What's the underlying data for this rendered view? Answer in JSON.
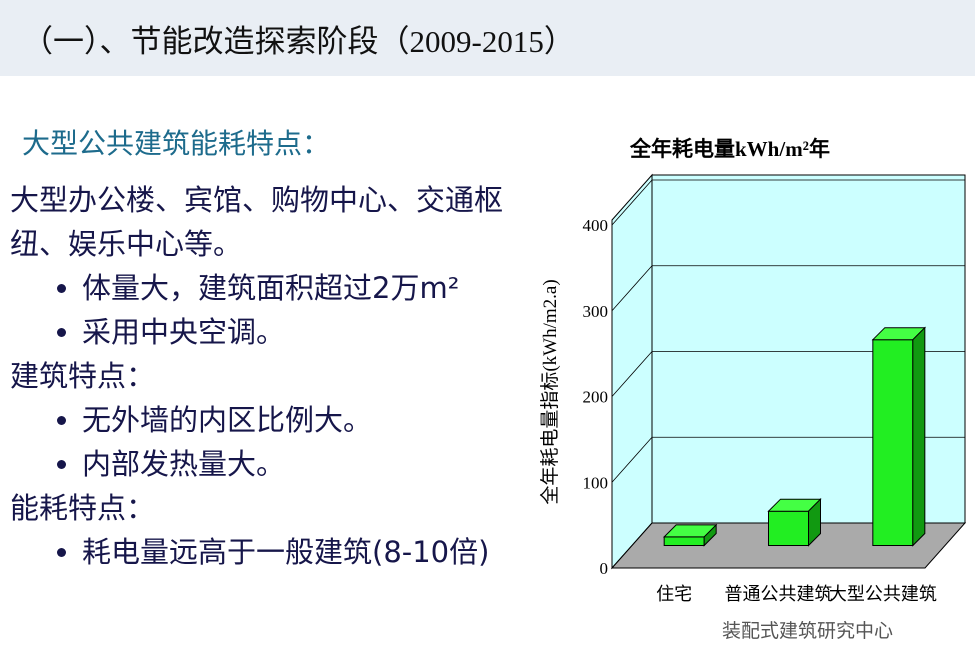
{
  "header": {
    "title": "（一）、节能改造探索阶段（2009-2015）"
  },
  "body": {
    "heading": "大型公共建筑能耗特点：",
    "sections": [
      {
        "text": "大型办公楼、宾馆、购物中心、交通枢纽、娱乐中心等。",
        "bullets": [
          "体量大，建筑面积超过2万m²",
          "采用中央空调。"
        ]
      },
      {
        "text": "建筑特点：",
        "bullets": [
          "无外墙的内区比例大。",
          "内部发热量大。"
        ]
      },
      {
        "text": "能耗特点：",
        "bullets": [
          "耗电量远高于一般建筑(8-10倍)"
        ]
      }
    ]
  },
  "chart_data": {
    "type": "bar3d",
    "title": "全年耗电量kWh/m²年",
    "y_label": "全年耗电量指标(kWh/m2.a)",
    "categories": [
      "住宅",
      "普通公共建筑",
      "大型公共建筑"
    ],
    "values": [
      10,
      40,
      240
    ],
    "color": "#22ee22",
    "ylim": [
      0,
      400
    ],
    "yticks": [
      0,
      100,
      200,
      300,
      400
    ],
    "grid": true
  },
  "watermark": "装配式建筑研究中心"
}
